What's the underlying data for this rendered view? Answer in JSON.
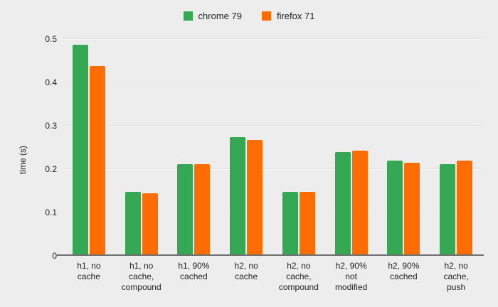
{
  "colors": {
    "background": "#ededed",
    "axis_line": "#6f6f6f",
    "gridline": "#f7f7f7",
    "text": "#212121"
  },
  "chart_data": {
    "type": "bar",
    "title": "",
    "categories": [
      "h1, no\ncache",
      "h1, no\ncache,\ncompound",
      "h1, 90%\ncached",
      "h2, no\ncache",
      "h2, no\ncache,\ncompound",
      "h2, 90%\nnot\nmodified",
      "h2, 90%\ncached",
      "h2, no\ncache,\npush"
    ],
    "series": [
      {
        "name": "chrome 79",
        "color": "#34a853",
        "values": [
          0.487,
          0.147,
          0.211,
          0.273,
          0.147,
          0.239,
          0.219,
          0.212
        ]
      },
      {
        "name": "firefox 71",
        "color": "#ff6d01",
        "values": [
          0.438,
          0.145,
          0.212,
          0.268,
          0.147,
          0.242,
          0.214,
          0.219
        ]
      }
    ],
    "xlabel": "",
    "ylabel": "time (s)",
    "ylim": [
      0,
      0.5
    ],
    "yticks": [
      "0",
      "0.1",
      "0.2",
      "0.3",
      "0.4",
      "0.5"
    ],
    "grid": true,
    "legend_position": "top"
  }
}
